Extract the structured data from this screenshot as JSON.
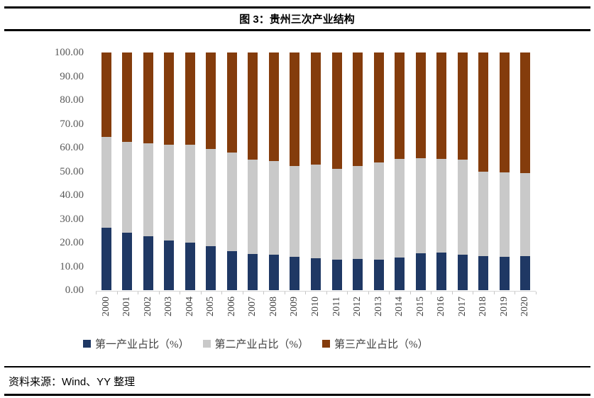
{
  "page": {
    "title": "图 3：贵州三次产业结构",
    "source": "资料来源：Wind、YY 整理"
  },
  "chart_data": {
    "type": "bar",
    "stacked": true,
    "percent_stacked": true,
    "title": "图 3：贵州三次产业结构",
    "categories": [
      "2000",
      "2001",
      "2002",
      "2003",
      "2004",
      "2005",
      "2006",
      "2007",
      "2008",
      "2009",
      "2010",
      "2011",
      "2012",
      "2013",
      "2014",
      "2015",
      "2016",
      "2017",
      "2018",
      "2019",
      "2020"
    ],
    "series": [
      {
        "name": "第一产业占比（%）",
        "color": "#1F3864",
        "values": [
          26.3,
          24.3,
          22.7,
          21.0,
          20.1,
          18.5,
          16.5,
          15.3,
          15.0,
          13.9,
          13.5,
          12.7,
          13.0,
          12.8,
          13.8,
          15.6,
          15.9,
          15.0,
          14.2,
          13.9,
          14.3
        ]
      },
      {
        "name": "第二产业占比（%）",
        "color": "#C9C9C9",
        "values": [
          38.2,
          38.2,
          39.0,
          40.2,
          41.0,
          41.0,
          41.5,
          39.6,
          39.2,
          38.2,
          39.4,
          38.5,
          39.3,
          40.9,
          41.4,
          40.0,
          39.4,
          40.0,
          35.7,
          35.8,
          34.9
        ]
      },
      {
        "name": "第三产业占比（%）",
        "color": "#843C0C",
        "values": [
          35.5,
          37.5,
          38.3,
          38.8,
          38.9,
          40.5,
          42.0,
          45.1,
          45.8,
          47.9,
          47.1,
          48.8,
          47.7,
          46.3,
          44.8,
          44.4,
          44.7,
          45.0,
          50.1,
          50.3,
          50.8
        ]
      }
    ],
    "xlabel": "",
    "ylabel": "",
    "ylim": [
      0,
      100
    ],
    "ytick_step": 10,
    "ytick_labels": [
      "0.00",
      "10.00",
      "20.00",
      "30.00",
      "40.00",
      "50.00",
      "60.00",
      "70.00",
      "80.00",
      "90.00",
      "100.00"
    ],
    "grid": false,
    "legend_position": "bottom"
  }
}
